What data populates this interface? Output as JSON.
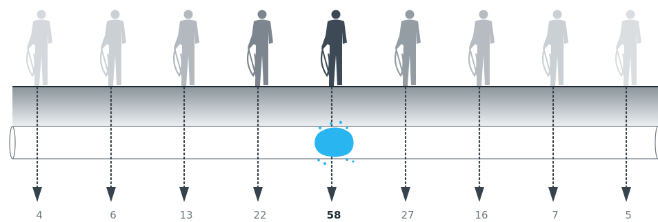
{
  "diagram": {
    "readings": [
      "4",
      "6",
      "13",
      "22",
      "58",
      "27",
      "16",
      "7",
      "5"
    ],
    "levels": [
      0.1,
      0.16,
      0.3,
      0.62,
      1.0,
      0.48,
      0.28,
      0.16,
      0.07
    ],
    "leak_position": "below-sensor-5",
    "colors": {
      "person_max": "#3d4a55",
      "person_min": "#e6e9ec",
      "ground_line": "#1e2a33",
      "soil_top": "#8a949b",
      "soil_bottom": "#eef0f2",
      "pipe_outline": "#6d7880",
      "leak": "#29b6f0",
      "arrow": "#37434c"
    }
  }
}
